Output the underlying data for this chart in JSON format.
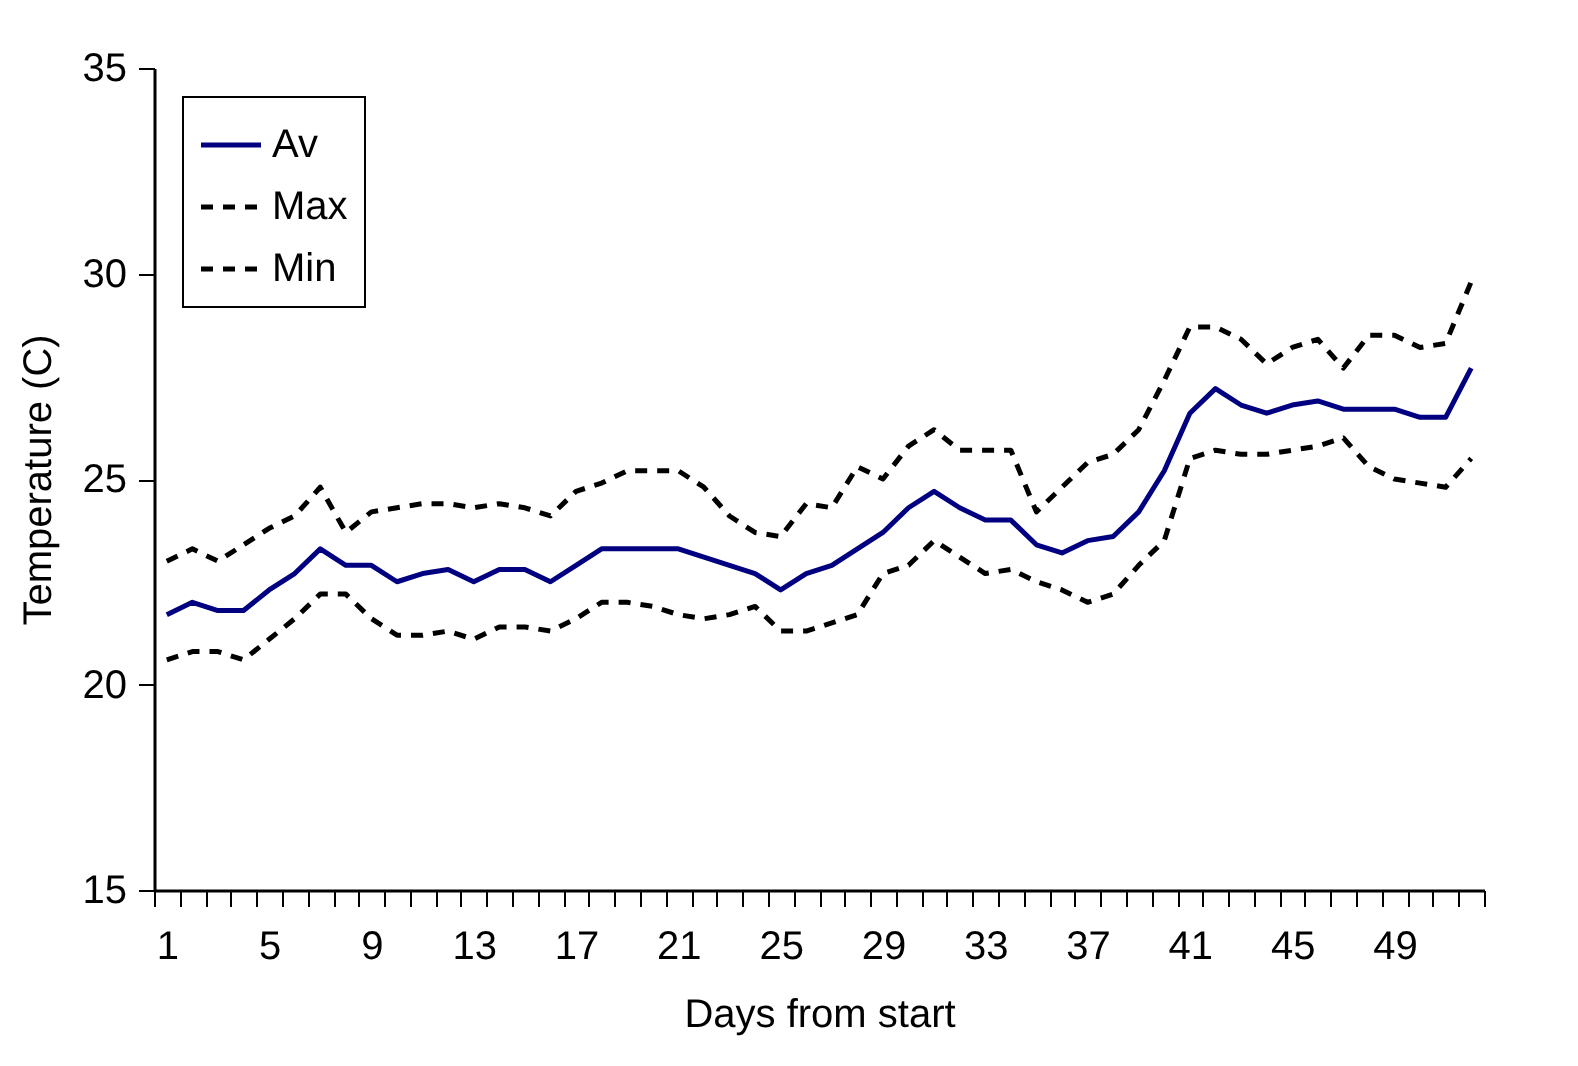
{
  "chart_data": {
    "type": "line",
    "xlabel": "Days from start",
    "ylabel": "Temperature (C)",
    "categories": [
      "1",
      null,
      null,
      null,
      "5",
      null,
      null,
      null,
      "9",
      null,
      null,
      null,
      "13",
      null,
      null,
      null,
      "17",
      null,
      null,
      null,
      "21",
      null,
      null,
      null,
      "25",
      null,
      null,
      null,
      "29",
      null,
      null,
      null,
      "33",
      null,
      null,
      null,
      "37",
      null,
      null,
      null,
      "41",
      null,
      null,
      null,
      "45",
      null,
      null,
      null,
      "49",
      null,
      null,
      null
    ],
    "series": [
      {
        "name": "Av",
        "color": "#000080",
        "line_style": "solid",
        "values": [
          21.7,
          22.0,
          21.8,
          21.8,
          22.3,
          22.7,
          23.3,
          22.9,
          22.9,
          22.5,
          22.7,
          22.8,
          22.5,
          22.8,
          22.8,
          22.5,
          22.9,
          23.3,
          23.3,
          23.3,
          23.3,
          23.1,
          22.9,
          22.7,
          22.3,
          22.7,
          22.9,
          23.3,
          23.7,
          24.3,
          24.7,
          24.3,
          24.0,
          24.0,
          23.4,
          23.2,
          23.5,
          23.6,
          24.2,
          25.2,
          26.6,
          27.2,
          26.8,
          26.6,
          26.8,
          26.9,
          26.7,
          26.7,
          26.7,
          26.5,
          26.5,
          27.7
        ]
      },
      {
        "name": "Max",
        "color": "#000000",
        "line_style": "dashed",
        "values": [
          23.0,
          23.3,
          23.0,
          23.4,
          23.8,
          24.1,
          24.8,
          23.7,
          24.2,
          24.3,
          24.4,
          24.4,
          24.3,
          24.4,
          24.3,
          24.1,
          24.7,
          24.9,
          25.2,
          25.2,
          25.2,
          24.8,
          24.1,
          23.7,
          23.6,
          24.4,
          24.3,
          25.3,
          25.0,
          25.8,
          26.2,
          25.7,
          25.7,
          25.7,
          24.2,
          24.8,
          25.4,
          25.6,
          26.2,
          27.4,
          28.7,
          28.7,
          28.4,
          27.8,
          28.2,
          28.4,
          27.7,
          28.5,
          28.5,
          28.2,
          28.3,
          29.8
        ]
      },
      {
        "name": "Min",
        "color": "#000000",
        "line_style": "dashed",
        "values": [
          20.6,
          20.8,
          20.8,
          20.6,
          21.1,
          21.6,
          22.2,
          22.2,
          21.6,
          21.2,
          21.2,
          21.3,
          21.1,
          21.4,
          21.4,
          21.3,
          21.6,
          22.0,
          22.0,
          21.9,
          21.7,
          21.6,
          21.7,
          21.9,
          21.3,
          21.3,
          21.5,
          21.7,
          22.7,
          22.9,
          23.5,
          23.1,
          22.7,
          22.8,
          22.5,
          22.3,
          22.0,
          22.2,
          22.9,
          23.5,
          25.5,
          25.7,
          25.6,
          25.6,
          25.7,
          25.8,
          26.0,
          25.3,
          25.0,
          24.9,
          24.8,
          25.5
        ]
      }
    ],
    "ylim": [
      15,
      35
    ],
    "yticks": [
      15,
      20,
      25,
      30,
      35
    ],
    "grid": false,
    "legend": "top left",
    "marker": "none"
  }
}
